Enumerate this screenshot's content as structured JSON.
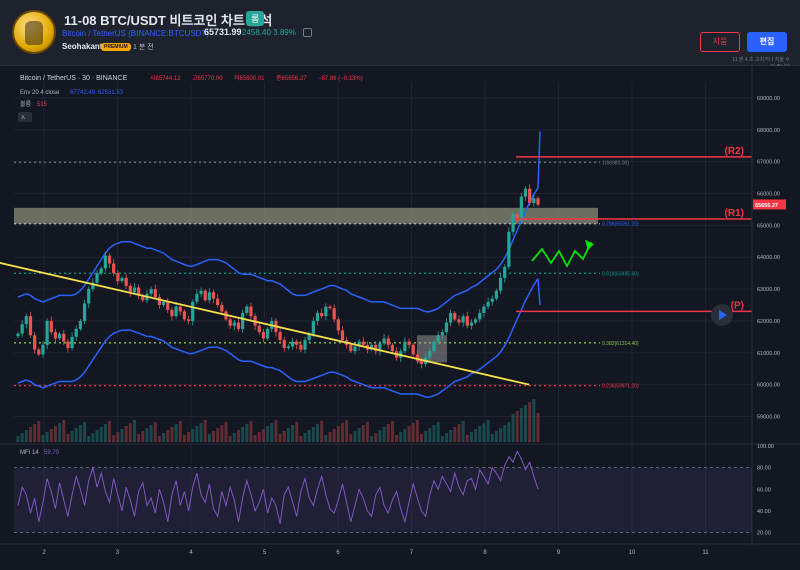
{
  "header": {
    "title": "11-08 BTC/USDT 비트코인 차트 분석",
    "badge": "롱",
    "symbol_line": "Bitcoin / TetherUS (BINANCE:BTCUSDT)",
    "price": "65731.99",
    "change": "2458.40  3.89%",
    "author": "Seohakant",
    "premium": "PREMIUM",
    "time_ago": "1 분 전",
    "delete_label": "지움",
    "edit_label": "편집",
    "meta_line1": "11 분 4 초 고치거나 지울 수",
    "meta_line2": "있 습니다"
  },
  "chart_data": {
    "type": "candlestick",
    "symbol_header": "Bitcoin / TetherUS · 30 · BINANCE",
    "ohlc_text": {
      "o": "시65744.12",
      "h": "고65770.00",
      "l": "저65600.01",
      "c": "종65656.27",
      "chg": "−87.86 (−0.13%)"
    },
    "env_label": "Env 20 4 close",
    "env_values": [
      "67742.49",
      "62531.53"
    ],
    "volume_label": "볼륨",
    "volume_value": "515",
    "current_price_label": "65656.27",
    "x_ticks": [
      "2",
      "3",
      "4",
      "5",
      "6",
      "7",
      "8",
      "9",
      "10",
      "11"
    ],
    "y_ticks": [
      "69000.00",
      "68000.00",
      "67000.00",
      "66000.00",
      "65000.00",
      "64000.00",
      "63000.00",
      "62000.00",
      "61000.00",
      "60000.00",
      "59000.00"
    ],
    "ylim": [
      58200,
      69500
    ],
    "fib_levels": [
      {
        "label": "0.618(63495.60)",
        "price": 63495.6,
        "color": "#089981"
      },
      {
        "label": "0.382(61314.40)",
        "price": 61314.4,
        "color": "#8bc34a"
      },
      {
        "label": "0.236(59971.20)",
        "price": 59971.2,
        "color": "#f23645"
      }
    ],
    "fib_zone_label": "0.786(65051.20)",
    "fib_zone_price": 65051.2,
    "top_fib_label": "1(66980.00)",
    "top_fib_price": 66980,
    "levels": [
      {
        "label": "(R2)",
        "price": 67150
      },
      {
        "label": "(R1)",
        "price": 65200
      },
      {
        "label": "(P)",
        "price": 62300
      }
    ],
    "close_series": [
      61600,
      61900,
      62150,
      61550,
      61100,
      60950,
      61250,
      62000,
      61650,
      61450,
      61600,
      61350,
      61150,
      61500,
      61750,
      62000,
      62550,
      63000,
      63200,
      63500,
      63650,
      64050,
      63800,
      63500,
      63250,
      63350,
      63100,
      62900,
      63050,
      62800,
      62650,
      62850,
      63000,
      62750,
      62500,
      62600,
      62350,
      62150,
      62450,
      62300,
      62050,
      62000,
      62600,
      62850,
      62950,
      62650,
      62900,
      62700,
      62500,
      62300,
      62050,
      61850,
      61950,
      61750,
      62250,
      62450,
      62150,
      61850,
      61650,
      61450,
      61750,
      62000,
      61650,
      61400,
      61150,
      61200,
      61350,
      61250,
      61100,
      61400,
      61600,
      62000,
      62250,
      62150,
      62450,
      62400,
      62050,
      61700,
      61400,
      61250,
      61050,
      61200,
      61350,
      61250,
      61100,
      61250,
      61050,
      61300,
      61450,
      61250,
      61050,
      60850,
      61050,
      61350,
      61250,
      60950,
      60750,
      60650,
      60850,
      61050,
      61350,
      61550,
      61650,
      61950,
      62250,
      62050,
      61950,
      62150,
      61850,
      61950,
      62050,
      62250,
      62450,
      62600,
      62700,
      62950,
      63350,
      63700,
      64800,
      65350,
      65150,
      65900,
      66150,
      65700,
      65850,
      65650
    ],
    "ma_series": [
      61400,
      61450,
      61500,
      61450,
      61350,
      61300,
      61250,
      61300,
      61350,
      61400,
      61450,
      61450,
      61450,
      61450,
      61500,
      61600,
      61750,
      61950,
      62150,
      62350,
      62550,
      62750,
      62900,
      63000,
      63050,
      63100,
      63100,
      63100,
      63050,
      63000,
      62950,
      62900,
      62900,
      62850,
      62800,
      62750,
      62650,
      62550,
      62500,
      62450,
      62400,
      62350,
      62350,
      62400,
      62450,
      62500,
      62550,
      62550,
      62550,
      62500,
      62450,
      62350,
      62250,
      62150,
      62100,
      62100,
      62100,
      62050,
      62000,
      61950,
      61900,
      61900,
      61850,
      61800,
      61700,
      61600,
      61500,
      61450,
      61450,
      61450,
      61500,
      61550,
      61600,
      61650,
      61700,
      61750,
      61750,
      61700,
      61650,
      61600,
      61500,
      61450,
      61400,
      61350,
      61300,
      61250,
      61250,
      61250,
      61250,
      61200,
      61150,
      61100,
      61050,
      61050,
      61050,
      61050,
      61050,
      61000,
      60950,
      60950,
      61000,
      61050,
      61150,
      61250,
      61350,
      61450,
      61500,
      61550,
      61600,
      61700,
      61750,
      61850,
      61950,
      62050,
      62150,
      62250,
      62400,
      62600,
      62850,
      63150,
      63450,
      63750,
      64050,
      64300,
      64550,
      64750
    ],
    "envelope_pct": 4,
    "trendline": {
      "from": [
        0.5,
        64300
      ],
      "to": [
        8.6,
        60000
      ]
    },
    "mfi": {
      "label": "MFI 14",
      "value": "59.79",
      "y_ticks": [
        "100.00",
        "80.00",
        "60.00",
        "40.00",
        "20.00"
      ],
      "series": [
        45,
        62,
        55,
        38,
        52,
        30,
        48,
        70,
        58,
        42,
        66,
        50,
        35,
        55,
        72,
        60,
        45,
        68,
        80,
        62,
        75,
        58,
        48,
        70,
        55,
        40,
        62,
        50,
        35,
        58,
        66,
        45,
        52,
        38,
        60,
        48,
        30,
        55,
        68,
        45,
        58,
        40,
        62,
        75,
        55,
        48,
        65,
        42,
        35,
        58,
        45,
        62,
        50,
        30,
        52,
        68,
        55,
        40,
        48,
        60,
        38,
        52,
        45,
        28,
        55,
        62,
        48,
        35,
        58,
        70,
        52,
        45,
        60,
        72,
        55,
        42,
        38,
        50,
        65,
        48,
        30,
        45,
        60,
        52,
        40,
        35,
        55,
        62,
        45,
        38,
        50,
        58,
        42,
        30,
        48,
        65,
        52,
        40,
        35,
        55,
        68,
        60,
        72,
        65,
        58,
        75,
        62,
        55,
        68,
        70,
        60,
        78,
        72,
        65,
        80,
        75,
        68,
        82,
        90,
        85,
        95,
        88,
        78,
        85,
        72,
        60
      ]
    }
  }
}
